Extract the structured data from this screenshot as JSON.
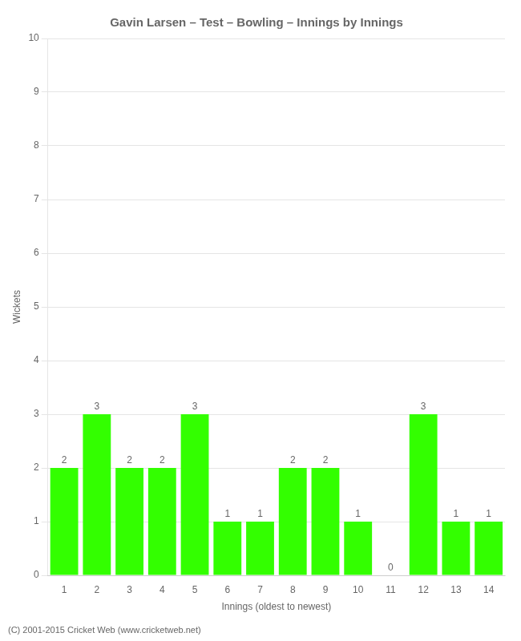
{
  "chart_data": {
    "type": "bar",
    "title": "Gavin Larsen – Test – Bowling – Innings by Innings",
    "x_label": "Innings (oldest to newest)",
    "y_label": "Wickets",
    "categories": [
      1,
      2,
      3,
      4,
      5,
      6,
      7,
      8,
      9,
      10,
      11,
      12,
      13,
      14
    ],
    "values": [
      2,
      3,
      2,
      2,
      3,
      1,
      1,
      2,
      2,
      1,
      0,
      3,
      1,
      1
    ],
    "color": "#33ff00",
    "ylim": [
      0,
      10
    ],
    "yticks": [
      0,
      1,
      2,
      3,
      4,
      5,
      6,
      7,
      8,
      9,
      10
    ],
    "grid": true,
    "data_labels": true,
    "annotations": [
      "(C) 2001-2015 Cricket Web (www.cricketweb.net)"
    ]
  }
}
